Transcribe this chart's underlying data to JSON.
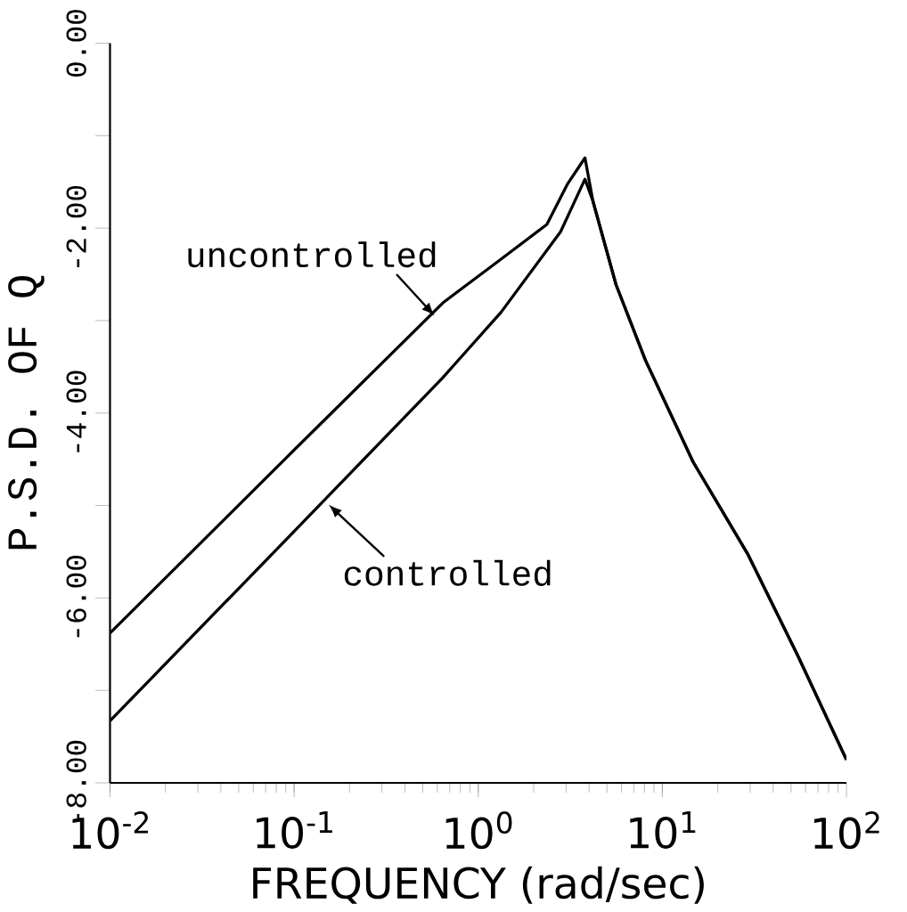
{
  "chart_data": {
    "type": "line",
    "xlabel": "FREQUENCY (rad/sec)",
    "ylabel": "P.S.D. OF Q",
    "log": "x",
    "xlim": [
      0.01,
      100
    ],
    "ylim": [
      -8,
      0
    ],
    "xticks": [
      {
        "value": 0.01,
        "label": "10$^{-2}$"
      },
      {
        "value": 0.1,
        "label": "10$^{-1}$"
      },
      {
        "value": 1,
        "label": "10$^{0}$"
      },
      {
        "value": 10,
        "label": "10$^{1}$"
      },
      {
        "value": 100,
        "label": "10$^{2}$"
      }
    ],
    "yticks": [
      {
        "value": -8,
        "label": "-8.00"
      },
      {
        "value": -7,
        "label": null
      },
      {
        "value": -6,
        "label": "-6.00"
      },
      {
        "value": -5,
        "label": null
      },
      {
        "value": -4,
        "label": "-4.00"
      },
      {
        "value": -3,
        "label": null
      },
      {
        "value": -2,
        "label": "-2.00"
      },
      {
        "value": -1,
        "label": null
      },
      {
        "value": 0,
        "label": "0.00"
      }
    ],
    "grid": false,
    "marker": "none",
    "line_style": "solid",
    "series": [
      {
        "color": "#000000",
        "x": [
          0.01,
          0.1,
          0.65,
          1.32,
          2.36,
          3.06,
          3.8,
          4.2,
          5.6,
          8.1,
          14.7,
          29,
          54,
          100
        ],
        "values": [
          -6.38,
          -4.4,
          -2.8,
          -2.34,
          -1.96,
          -1.52,
          -1.24,
          -1.71,
          -2.61,
          -3.43,
          -4.53,
          -5.52,
          -6.61,
          -7.75
        ]
      },
      {
        "color": "#000000",
        "x": [
          0.01,
          0.1,
          0.64,
          1.33,
          2.8,
          3.8,
          4.2,
          5.6,
          8.1,
          14.7,
          29,
          54,
          100
        ],
        "values": [
          -7.33,
          -5.28,
          -3.62,
          -2.91,
          -2.04,
          -1.47,
          -1.71,
          -2.61,
          -3.43,
          -4.53,
          -5.52,
          -6.61,
          -7.75
        ]
      }
    ],
    "annotations": [
      {
        "text": "uncontrolled",
        "x": 0.58,
        "y": -2.95
      },
      {
        "text": "controlled",
        "x": 0.154,
        "y": -4.99
      }
    ]
  }
}
